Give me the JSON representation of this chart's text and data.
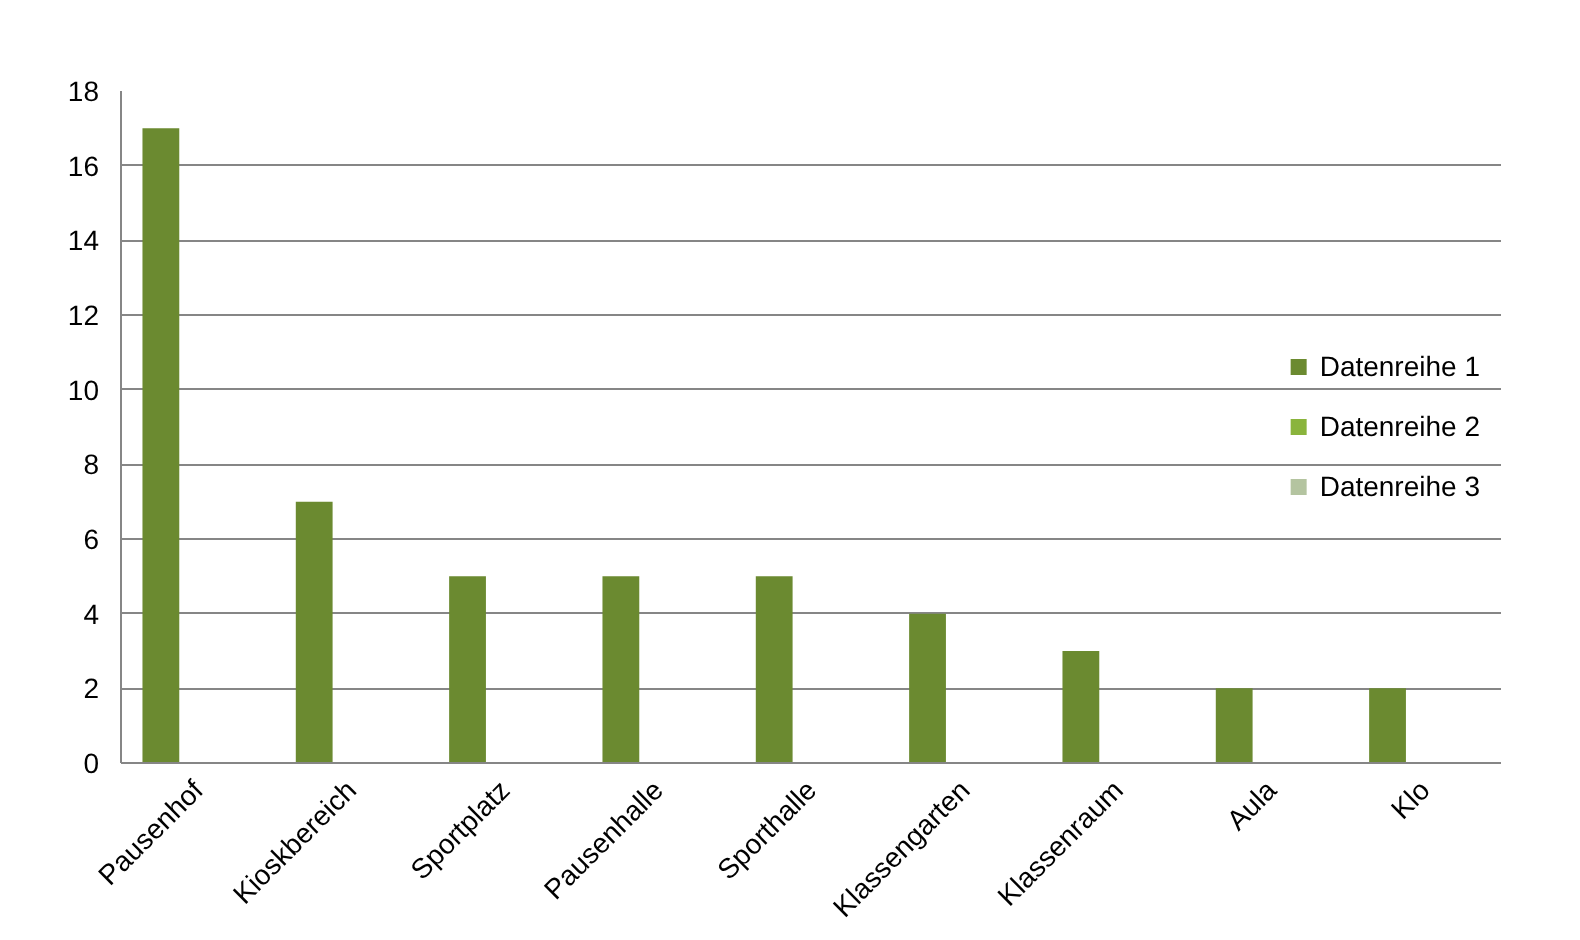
{
  "chart_data": {
    "type": "bar",
    "categories": [
      "Pausenhof",
      "Kioskbereich",
      "Sportplatz",
      "Pausenhalle",
      "Sporthalle",
      "Klassengarten",
      "Klassenraum",
      "Aula",
      "Klo"
    ],
    "series": [
      {
        "name": "Datenreihe 1",
        "color": "#6b8a30",
        "values": [
          17,
          7,
          5,
          5,
          5,
          4,
          3,
          2,
          2
        ]
      },
      {
        "name": "Datenreihe 2",
        "color": "#8ab43c",
        "values": [
          null,
          null,
          null,
          null,
          null,
          null,
          null,
          null,
          null
        ]
      },
      {
        "name": "Datenreihe 3",
        "color": "#b4c4a0",
        "values": [
          null,
          null,
          null,
          null,
          null,
          null,
          null,
          null,
          null
        ]
      }
    ],
    "ylim": [
      0,
      18
    ],
    "yticks": [
      0,
      2,
      4,
      6,
      8,
      10,
      12,
      14,
      16,
      18
    ],
    "grid": "y",
    "legend": "right"
  }
}
